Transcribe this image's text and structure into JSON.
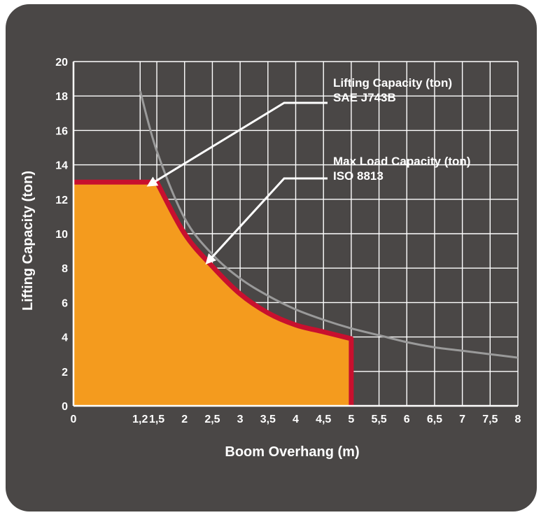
{
  "chart_data": {
    "type": "area",
    "xlabel": "Boom Overhang (m)",
    "ylabel": "Lifting Capacity (ton)",
    "xlim": [
      0,
      8
    ],
    "ylim": [
      0,
      20
    ],
    "grid": true,
    "x_ticks": [
      {
        "value": 0,
        "label": "0"
      },
      {
        "value": 1.2,
        "label": "1,2"
      },
      {
        "value": 1.5,
        "label": "1,5"
      },
      {
        "value": 2,
        "label": "2"
      },
      {
        "value": 2.5,
        "label": "2,5"
      },
      {
        "value": 3,
        "label": "3"
      },
      {
        "value": 3.5,
        "label": "3,5"
      },
      {
        "value": 4,
        "label": "4"
      },
      {
        "value": 4.5,
        "label": "4,5"
      },
      {
        "value": 5,
        "label": "5"
      },
      {
        "value": 5.5,
        "label": "5,5"
      },
      {
        "value": 6,
        "label": "6"
      },
      {
        "value": 6.5,
        "label": "6,5"
      },
      {
        "value": 7,
        "label": "7"
      },
      {
        "value": 7.5,
        "label": "7,5"
      },
      {
        "value": 8,
        "label": "8"
      }
    ],
    "y_ticks": [
      {
        "value": 0,
        "label": "0"
      },
      {
        "value": 2,
        "label": "2"
      },
      {
        "value": 4,
        "label": "4"
      },
      {
        "value": 6,
        "label": "6"
      },
      {
        "value": 8,
        "label": "8"
      },
      {
        "value": 10,
        "label": "10"
      },
      {
        "value": 12,
        "label": "12"
      },
      {
        "value": 14,
        "label": "14"
      },
      {
        "value": 16,
        "label": "16"
      },
      {
        "value": 18,
        "label": "18"
      },
      {
        "value": 20,
        "label": "20"
      }
    ],
    "series": [
      {
        "name": "Lifting Capacity (ton) SAE J743B",
        "kind": "line",
        "color": "#9a9a9a",
        "x": [
          1.2,
          1.5,
          2,
          2.5,
          3,
          3.5,
          4,
          4.5,
          5,
          5.5,
          6,
          6.5,
          7,
          7.5,
          8
        ],
        "y": [
          18.3,
          14.8,
          10.9,
          8.8,
          7.4,
          6.4,
          5.6,
          5.0,
          4.5,
          4.1,
          3.7,
          3.4,
          3.2,
          3.0,
          2.8
        ]
      },
      {
        "name": "Max Load Capacity (ton) ISO 8813",
        "kind": "area",
        "color": "#c8102e",
        "fill": "#f49b1e",
        "x": [
          0,
          1.5,
          2,
          2.5,
          3,
          3.5,
          4,
          4.5,
          5,
          5
        ],
        "y": [
          13,
          13,
          10,
          8.1,
          6.5,
          5.4,
          4.7,
          4.3,
          3.9,
          0
        ]
      }
    ],
    "annotations": [
      {
        "lines": [
          "Lifting Capacity (ton)",
          "SAE J743B"
        ],
        "points_to": {
          "x": 1.35,
          "y": 12.8
        }
      },
      {
        "lines": [
          "Max Load Capacity (ton)",
          "ISO 8813"
        ],
        "points_to": {
          "x": 2.4,
          "y": 8.3
        }
      }
    ]
  }
}
